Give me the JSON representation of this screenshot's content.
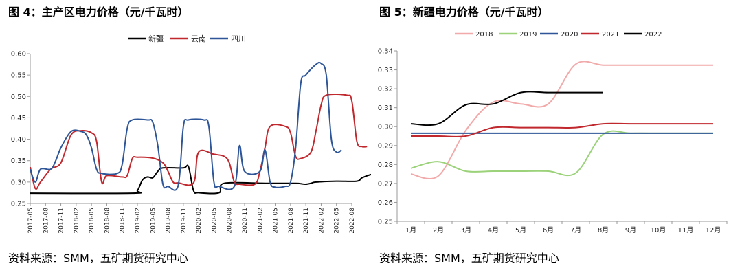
{
  "figures": [
    {
      "title": "图 4：主产区电力价格（元/千瓦时）",
      "source": "资料来源：SMM，五矿期货研究中心"
    },
    {
      "title": "图 5：新疆电力价格（元/千瓦时）",
      "source": "资料来源：SMM，五矿期货研究中心"
    }
  ],
  "chart_data": [
    {
      "type": "line",
      "title": "主产区电力价格（元/千瓦时）",
      "xlabel": "",
      "ylabel": "",
      "ylim": [
        0.25,
        0.6
      ],
      "yticks": [
        "0.25",
        "0.30",
        "0.35",
        "0.40",
        "0.45",
        "0.50",
        "0.55",
        "0.60"
      ],
      "x_tick_labels": [
        "2017-05",
        "2017-08",
        "2017-11",
        "2018-02",
        "2018-05",
        "2018-08",
        "2018-11",
        "2019-02",
        "2019-05",
        "2019-08",
        "2019-11",
        "2020-02",
        "2020-05",
        "2020-08",
        "2020-11",
        "2021-02",
        "2021-05",
        "2021-08",
        "2021-11",
        "2022-02",
        "2022-05",
        "2022-08"
      ],
      "legend_position": "top",
      "grid": false,
      "series": [
        {
          "name": "新疆",
          "color": "#000000",
          "points": [
            [
              0,
              0.274
            ],
            [
              20,
              0.274
            ],
            [
              21,
              0.28
            ],
            [
              22,
              0.305
            ],
            [
              23,
              0.312
            ],
            [
              24,
              0.31
            ],
            [
              25,
              0.325
            ],
            [
              26,
              0.333
            ],
            [
              30,
              0.333
            ],
            [
              31,
              0.336
            ],
            [
              32,
              0.28
            ],
            [
              33,
              0.275
            ],
            [
              37,
              0.275
            ],
            [
              38,
              0.297
            ],
            [
              46,
              0.297
            ],
            [
              52,
              0.297
            ],
            [
              53,
              0.296
            ],
            [
              54,
              0.295
            ],
            [
              55,
              0.297
            ],
            [
              56,
              0.3
            ],
            [
              60,
              0.302
            ],
            [
              64,
              0.302
            ],
            [
              65,
              0.31
            ],
            [
              67,
              0.318
            ],
            [
              69,
              0.318
            ]
          ]
        },
        {
          "name": "云南",
          "color": "#c0282e",
          "points": [
            [
              0,
              0.335
            ],
            [
              1,
              0.285
            ],
            [
              2,
              0.3
            ],
            [
              4,
              0.33
            ],
            [
              6,
              0.345
            ],
            [
              8,
              0.41
            ],
            [
              10,
              0.42
            ],
            [
              12,
              0.415
            ],
            [
              13,
              0.395
            ],
            [
              14,
              0.3
            ],
            [
              15,
              0.315
            ],
            [
              18,
              0.312
            ],
            [
              19,
              0.315
            ],
            [
              20,
              0.355
            ],
            [
              21,
              0.358
            ],
            [
              24,
              0.356
            ],
            [
              26,
              0.345
            ],
            [
              27,
              0.325
            ],
            [
              28,
              0.3
            ],
            [
              29,
              0.298
            ],
            [
              32,
              0.298
            ],
            [
              33,
              0.37
            ],
            [
              36,
              0.365
            ],
            [
              38,
              0.36
            ],
            [
              39,
              0.345
            ],
            [
              40,
              0.3
            ],
            [
              41,
              0.295
            ],
            [
              44,
              0.295
            ],
            [
              45,
              0.325
            ],
            [
              46,
              0.38
            ],
            [
              47,
              0.43
            ],
            [
              50,
              0.43
            ],
            [
              51,
              0.415
            ],
            [
              52,
              0.36
            ],
            [
              53,
              0.355
            ],
            [
              55,
              0.37
            ],
            [
              56,
              0.42
            ],
            [
              57,
              0.48
            ],
            [
              58,
              0.503
            ],
            [
              62,
              0.503
            ],
            [
              63,
              0.49
            ],
            [
              64,
              0.395
            ],
            [
              65,
              0.383
            ],
            [
              66,
              0.383
            ]
          ]
        },
        {
          "name": "四川",
          "color": "#2e5597",
          "points": [
            [
              0,
              0.33
            ],
            [
              1,
              0.3
            ],
            [
              2,
              0.33
            ],
            [
              4,
              0.33
            ],
            [
              5,
              0.35
            ],
            [
              6,
              0.38
            ],
            [
              8,
              0.418
            ],
            [
              10,
              0.418
            ],
            [
              11,
              0.41
            ],
            [
              12,
              0.38
            ],
            [
              13,
              0.33
            ],
            [
              14,
              0.32
            ],
            [
              17,
              0.32
            ],
            [
              18,
              0.34
            ],
            [
              19,
              0.425
            ],
            [
              20,
              0.445
            ],
            [
              23,
              0.445
            ],
            [
              24,
              0.44
            ],
            [
              25,
              0.385
            ],
            [
              26,
              0.295
            ],
            [
              27,
              0.29
            ],
            [
              29,
              0.292
            ],
            [
              30,
              0.43
            ],
            [
              31,
              0.445
            ],
            [
              34,
              0.445
            ],
            [
              35,
              0.43
            ],
            [
              36,
              0.3
            ],
            [
              37,
              0.29
            ],
            [
              40,
              0.29
            ],
            [
              41,
              0.385
            ],
            [
              42,
              0.325
            ],
            [
              45,
              0.325
            ],
            [
              46,
              0.375
            ],
            [
              47,
              0.3
            ],
            [
              48,
              0.288
            ],
            [
              50,
              0.29
            ],
            [
              51,
              0.3
            ],
            [
              52,
              0.38
            ],
            [
              53,
              0.53
            ],
            [
              54,
              0.55
            ],
            [
              56,
              0.575
            ],
            [
              57,
              0.577
            ],
            [
              58,
              0.55
            ],
            [
              59,
              0.4
            ],
            [
              60,
              0.37
            ],
            [
              61,
              0.375
            ]
          ]
        }
      ]
    },
    {
      "type": "line",
      "title": "新疆电力价格（元/千瓦时）",
      "xlabel": "",
      "ylabel": "",
      "categories": [
        "1月",
        "2月",
        "3月",
        "4月",
        "5月",
        "6月",
        "7月",
        "8月",
        "9月",
        "10月",
        "11月",
        "12月"
      ],
      "ylim": [
        0.25,
        0.34
      ],
      "yticks": [
        "0.25",
        "0.26",
        "0.27",
        "0.28",
        "0.29",
        "0.30",
        "0.31",
        "0.32",
        "0.33",
        "0.34"
      ],
      "legend_position": "top",
      "grid": false,
      "series": [
        {
          "name": "2018",
          "color": "#f2a9a9",
          "values": [
            0.275,
            0.274,
            0.298,
            0.313,
            0.312,
            0.312,
            0.333,
            0.3325,
            0.3325,
            0.3325,
            0.3325,
            0.3325
          ]
        },
        {
          "name": "2019",
          "color": "#9bd27a",
          "values": [
            0.278,
            0.2815,
            0.2765,
            0.2765,
            0.2765,
            0.2765,
            0.2755,
            0.296,
            0.2965,
            0.2965,
            0.2965,
            0.2965
          ]
        },
        {
          "name": "2020",
          "color": "#2e5597",
          "values": [
            0.2965,
            0.2965,
            0.2965,
            0.2965,
            0.2965,
            0.2965,
            0.2965,
            0.2965,
            0.2965,
            0.2965,
            0.2965,
            0.2965
          ]
        },
        {
          "name": "2021",
          "color": "#c0282e",
          "values": [
            0.295,
            0.295,
            0.295,
            0.2995,
            0.2995,
            0.2995,
            0.2995,
            0.3015,
            0.3015,
            0.3015,
            0.3015,
            0.3015
          ]
        },
        {
          "name": "2022",
          "color": "#000000",
          "values": [
            0.3015,
            0.3015,
            0.3115,
            0.312,
            0.318,
            0.318,
            0.318,
            0.318,
            null,
            null,
            null,
            null
          ]
        }
      ]
    }
  ]
}
